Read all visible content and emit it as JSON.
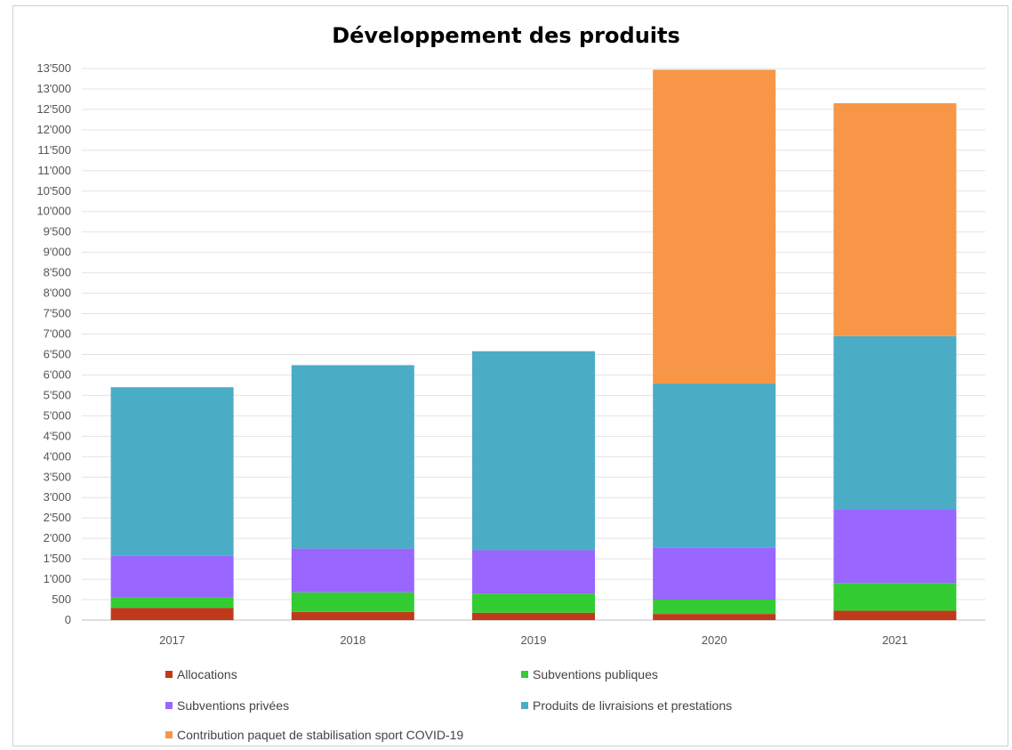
{
  "chart_data": {
    "type": "bar",
    "stacked": true,
    "title": "Développement des produits",
    "categories": [
      "2017",
      "2018",
      "2019",
      "2020",
      "2021"
    ],
    "series": [
      {
        "name": "Allocations",
        "color": "#c0391b",
        "values": [
          300,
          200,
          180,
          150,
          230
        ]
      },
      {
        "name": "Subventions publiques",
        "color": "#33cc33",
        "values": [
          250,
          480,
          470,
          350,
          680
        ]
      },
      {
        "name": "Subventions privées",
        "color": "#9966ff",
        "values": [
          1020,
          1070,
          1060,
          1280,
          1790
        ]
      },
      {
        "name": "Produits de livraisions et prestations",
        "color": "#4bacc6",
        "values": [
          4130,
          4490,
          4870,
          4010,
          4250
        ]
      },
      {
        "name": "Contribution paquet de stabilisation sport COVID-19",
        "color": "#f79646",
        "values": [
          0,
          0,
          0,
          7680,
          5700
        ]
      }
    ],
    "ylim": [
      0,
      13500
    ],
    "yticks": [
      "0",
      "500",
      "1'000",
      "1'500",
      "2'000",
      "2'500",
      "3'000",
      "3'500",
      "4'000",
      "4'500",
      "5'000",
      "5'500",
      "6'000",
      "6'500",
      "7'000",
      "7'500",
      "8'000",
      "8'500",
      "9'000",
      "9'500",
      "10'000",
      "10'500",
      "11'000",
      "11'500",
      "12'000",
      "12'500",
      "13'000",
      "13'500"
    ],
    "grid": true,
    "legend_position": "bottom"
  }
}
